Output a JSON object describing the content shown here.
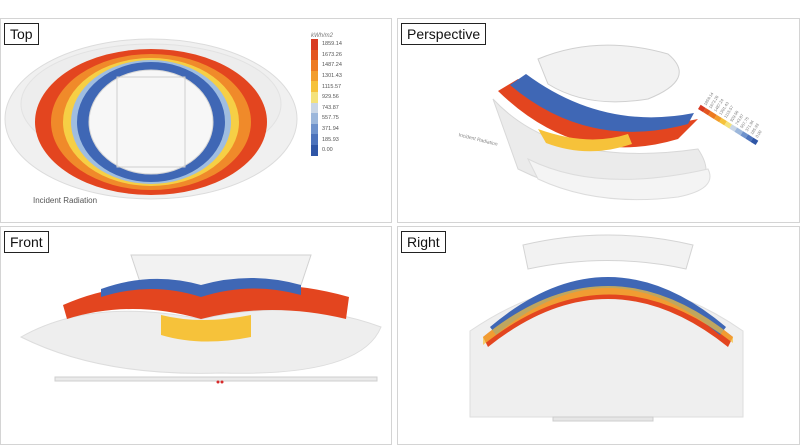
{
  "views": {
    "top": {
      "label": "Top"
    },
    "perspective": {
      "label": "Perspective"
    },
    "front": {
      "label": "Front"
    },
    "right": {
      "label": "Right"
    }
  },
  "legend": {
    "unit": "kWh/m2",
    "values": [
      "1859.14",
      "1673.26",
      "1487.24",
      "1301.43",
      "1115.57",
      "929.56",
      "743.87",
      "557.75",
      "371.94",
      "185.93",
      "0.00"
    ],
    "colors": [
      "#d83a22",
      "#e3551f",
      "#ed7a20",
      "#f29d2c",
      "#f6c23a",
      "#f4e27a",
      "#c9d6e6",
      "#9cb7db",
      "#6e92cc",
      "#4c73bc",
      "#2f56a6"
    ]
  },
  "top_caption": "Incident Radiation",
  "persp_caption": "Incident Radiation",
  "persp_legend_values": [
    "1859.14",
    "1673.26",
    "1487.24",
    "1301.43",
    "1115.57",
    "929.56",
    "743.87",
    "557.75",
    "371.94",
    "185.93",
    "0.00"
  ],
  "accent_colors": {
    "hot": "#e3451f",
    "warm": "#f5b53a",
    "cool": "#3f67b5",
    "shell": "#eeeeee"
  }
}
